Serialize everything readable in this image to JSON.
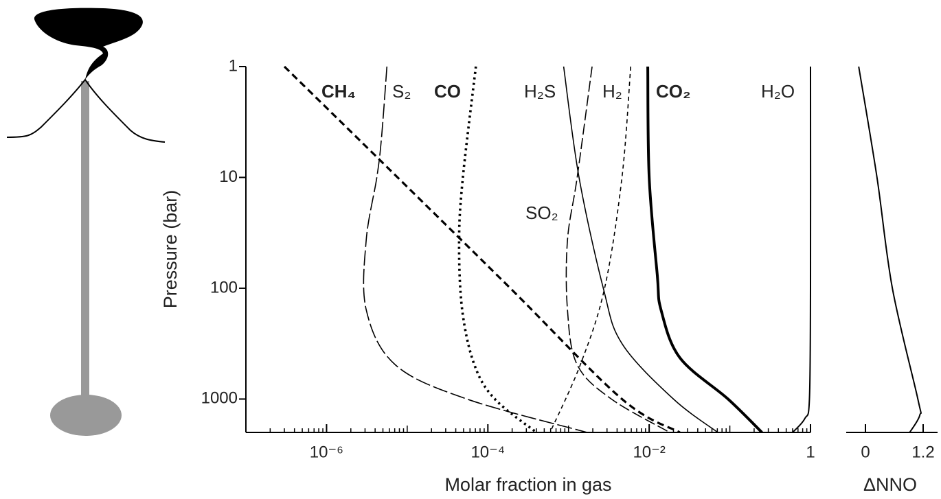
{
  "chart_data": [
    {
      "type": "line",
      "xlog": true,
      "ylog": true,
      "y_inverted": true,
      "x_label": "Molar fraction in gas",
      "y_label": "Pressure (bar)",
      "xlim": [
        1e-07,
        1
      ],
      "ylim": [
        1,
        2000
      ],
      "xticks": [
        {
          "value": 1e-06,
          "label": "10⁻⁶"
        },
        {
          "value": 0.0001,
          "label": "10⁻⁴"
        },
        {
          "value": 0.01,
          "label": "10⁻²"
        },
        1
      ],
      "yticks": [
        1,
        10,
        100,
        1000
      ],
      "series": [
        {
          "name": "CH₄",
          "bold": true,
          "dash": "10 6",
          "width": 3.2,
          "color": "#000000",
          "x": [
            3e-07,
            7.6e-06,
            0.00019,
            0.0046,
            0.024
          ],
          "y": [
            1,
            10,
            100,
            1000,
            2000
          ]
        },
        {
          "name": "S₂",
          "bold": false,
          "dash": "22 5",
          "width": 1.6,
          "color": "#000000",
          "x": [
            5.6e-06,
            4.8e-06,
            4.2e-06,
            3.1e-06,
            3.1e-06,
            7.1e-06,
            5.5e-05,
            0.0017
          ],
          "y": [
            1,
            4.4,
            10,
            37,
            156,
            490,
            1000,
            2000
          ]
        },
        {
          "name": "CO",
          "bold": true,
          "dash": "3 5",
          "width": 3.6,
          "color": "#000000",
          "x": [
            7.1e-05,
            4.9e-05,
            4.4e-05,
            4.8e-05,
            6.8e-05,
            0.000122,
            0.0004
          ],
          "y": [
            1,
            10,
            37,
            156,
            490,
            1000,
            2000
          ]
        },
        {
          "name": "H₂S",
          "bold": false,
          "dash": "none",
          "width": 1.6,
          "color": "#000000",
          "x": [
            0.00087,
            0.00135,
            0.0027,
            0.0046,
            0.02,
            0.071
          ],
          "y": [
            1,
            10,
            100,
            316,
            1000,
            2000
          ]
        },
        {
          "name": "H₂",
          "bold": false,
          "dash": "6 5",
          "width": 1.6,
          "color": "#000000",
          "x": [
            0.0059,
            0.0046,
            0.0028,
            0.0014,
            0.00059
          ],
          "y": [
            1,
            10,
            100,
            490,
            2000
          ]
        },
        {
          "name": "CO₂",
          "bold": true,
          "dash": "none",
          "width": 4,
          "color": "#000000",
          "x": [
            0.0096,
            0.01,
            0.0126,
            0.014,
            0.024,
            0.095,
            0.25
          ],
          "y": [
            1,
            10,
            76,
            156,
            424,
            1000,
            2000
          ]
        },
        {
          "name": "H₂O",
          "bold": false,
          "dash": "none",
          "width": 2,
          "color": "#000000",
          "x": [
            1,
            1,
            0.97,
            0.85,
            0.6
          ],
          "y": [
            1,
            100,
            1000,
            1500,
            2000
          ]
        },
        {
          "name": "SO₂",
          "bold": false,
          "dash": "16 5",
          "width": 1.6,
          "color": "#000000",
          "x": [
            0.00196,
            0.00128,
            0.00097,
            0.00097,
            0.00128,
            0.0034,
            0.018
          ],
          "y": [
            1,
            10,
            37,
            156,
            490,
            1000,
            2000
          ]
        }
      ]
    },
    {
      "type": "line",
      "xlog": false,
      "ylog": true,
      "y_inverted": true,
      "x_label": "ΔNNO",
      "xlim": [
        -0.4,
        1.5
      ],
      "ylim": [
        1,
        2000
      ],
      "xticks": [
        0,
        1.2
      ],
      "series": [
        {
          "dash": "none",
          "width": 2,
          "color": "#000000",
          "x": [
            -0.14,
            0.24,
            0.56,
            1.09,
            1.13,
            0.92
          ],
          "y": [
            1,
            10,
            100,
            1000,
            1400,
            2000
          ]
        }
      ]
    }
  ]
}
